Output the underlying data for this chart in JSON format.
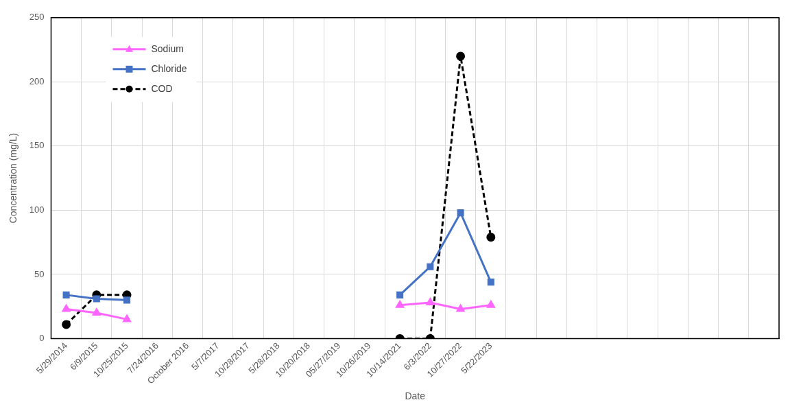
{
  "chart_data": {
    "type": "line",
    "xlabel": "Date",
    "ylabel": "Concentration (mg/L)",
    "categories": [
      "5/29/2014",
      "6/9/2015",
      "10/25/2015",
      "7/24/2016",
      "October 2016",
      "5/7/2017",
      "10/28/2017",
      "5/28/2018",
      "10/20/2018",
      "05/27/2019",
      "10/26/2019",
      "10/14/2021",
      "6/3/2022",
      "10/27/2022",
      "5/22/2023",
      null,
      null,
      null,
      null,
      null,
      null,
      null,
      null,
      null
    ],
    "series": [
      {
        "name": "Sodium",
        "color": "#ff66ff",
        "marker": "triangle",
        "line_style": "solid",
        "values": [
          23,
          20,
          15,
          null,
          null,
          null,
          null,
          null,
          null,
          null,
          null,
          26,
          28,
          23,
          26,
          null,
          null,
          null,
          null,
          null,
          null,
          null,
          null,
          null
        ]
      },
      {
        "name": "Chloride",
        "color": "#4472c4",
        "marker": "square",
        "line_style": "solid",
        "values": [
          34,
          31,
          30,
          null,
          null,
          null,
          null,
          null,
          null,
          null,
          null,
          34,
          56,
          98,
          44,
          null,
          null,
          null,
          null,
          null,
          null,
          null,
          null,
          null
        ]
      },
      {
        "name": "COD",
        "color": "#000000",
        "marker": "circle",
        "line_style": "dashed",
        "values": [
          11,
          34,
          34,
          null,
          null,
          null,
          null,
          null,
          null,
          null,
          null,
          0,
          0,
          220,
          79,
          null,
          null,
          null,
          null,
          null,
          null,
          null,
          null,
          null
        ]
      }
    ],
    "ylim": [
      0,
      250
    ],
    "yticks": [
      0,
      50,
      100,
      150,
      200,
      250
    ],
    "grid": true,
    "legend": "top left"
  }
}
